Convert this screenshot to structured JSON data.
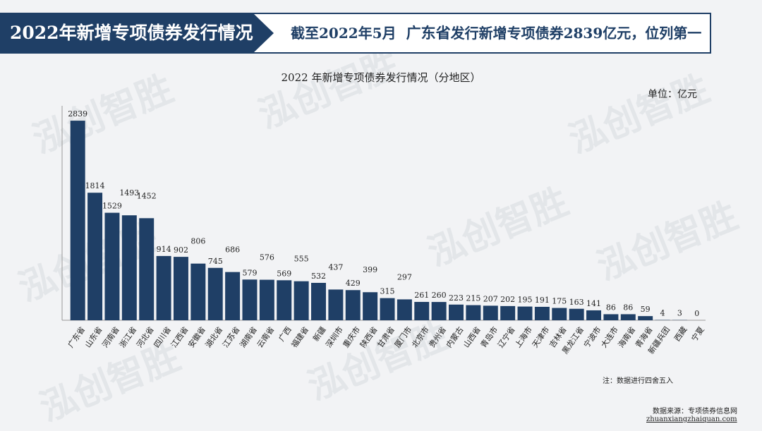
{
  "header": {
    "left_title": "2022年新增专项债券发行情况",
    "right_prefix": "截至2022年5月",
    "right_highlight": "广东省",
    "right_suffix": "发行新增专项债券2839亿元，位列第一"
  },
  "watermark": {
    "text": "泓创智胜"
  },
  "footer": {
    "note": "注：数据进行四舍五入",
    "source": "数据来源：专项债券信息网",
    "url": "zhuanxiangzhaiquan.com"
  },
  "colors": {
    "bar": "#1f3f66",
    "header": "#1f3f66",
    "background": "#f2f3f5"
  },
  "chart_data": {
    "type": "bar",
    "title": "2022 年新增专项债券发行情况（分地区）",
    "unit": "单位：亿元",
    "categories": [
      "广东省",
      "山东省",
      "河南省",
      "浙江省",
      "河北省",
      "四川省",
      "江西省",
      "安徽省",
      "湖北省",
      "江苏省",
      "湖南省",
      "云南省",
      "广西",
      "福建省",
      "新疆",
      "深圳市",
      "重庆市",
      "陕西省",
      "甘肃省",
      "厦门市",
      "北京市",
      "贵州省",
      "内蒙古",
      "山西省",
      "青岛市",
      "辽宁省",
      "上海市",
      "天津市",
      "吉林省",
      "黑龙江省",
      "宁波市",
      "大连市",
      "海南省",
      "青海省",
      "新疆兵团",
      "西藏",
      "宁夏"
    ],
    "values": [
      2839,
      1814,
      1529,
      1493,
      1452,
      914,
      902,
      806,
      745,
      686,
      579,
      576,
      569,
      555,
      532,
      437,
      429,
      399,
      315,
      297,
      261,
      260,
      223,
      215,
      207,
      202,
      195,
      191,
      175,
      163,
      141,
      86,
      86,
      59,
      4,
      3,
      0
    ],
    "ylim": [
      0,
      2900
    ],
    "grid": false,
    "legend": "none"
  }
}
